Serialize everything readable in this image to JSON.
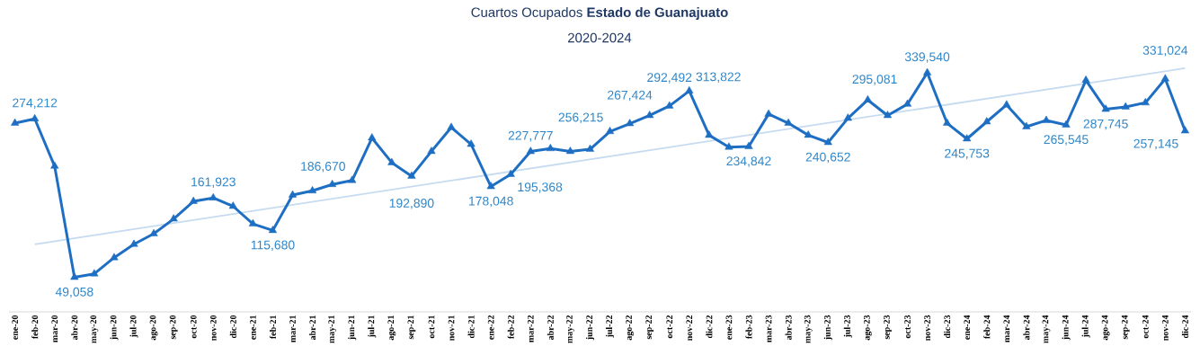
{
  "chart_data": {
    "type": "line",
    "title": "Cuartos Ocupados **Estado de Guanajuato**",
    "subtitle": "2020-2024",
    "categories": [
      "ene-20",
      "feb-20",
      "mar-20",
      "abr-20",
      "may-20",
      "jun-20",
      "jul-20",
      "ago-20",
      "sep-20",
      "oct-20",
      "nov-20",
      "dic-20",
      "ene-21",
      "feb-21",
      "mar-21",
      "abr-21",
      "may-21",
      "jun-21",
      "jul-21",
      "ago-21",
      "sep-21",
      "oct-21",
      "nov-21",
      "dic-21",
      "ene-22",
      "feb-22",
      "mar-22",
      "abr-22",
      "may-22",
      "jun-22",
      "jul-22",
      "ago-22",
      "sep-22",
      "oct-22",
      "nov-22",
      "dic-22",
      "ene-23",
      "feb-23",
      "mar-23",
      "abr-23",
      "may-23",
      "jun-23",
      "jul-23",
      "ago-23",
      "sep-23",
      "oct-23",
      "nov-23",
      "dic-23",
      "ene-24",
      "feb-24",
      "mar-24",
      "abr-24",
      "may-24",
      "jun-24",
      "jul-24",
      "ago-24",
      "sep-24",
      "oct-24",
      "nov-24",
      "dic-24"
    ],
    "series": [
      {
        "color": "#c6dbf0",
        "marker": "none",
        "values": [
          null,
          96000,
          null,
          null,
          null,
          null,
          null,
          null,
          null,
          null,
          null,
          null,
          null,
          null,
          null,
          null,
          null,
          null,
          null,
          null,
          null,
          null,
          null,
          null,
          null,
          null,
          null,
          null,
          null,
          null,
          null,
          null,
          null,
          null,
          null,
          null,
          null,
          null,
          null,
          null,
          null,
          null,
          null,
          null,
          null,
          null,
          null,
          null,
          null,
          null,
          null,
          null,
          null,
          null,
          null,
          null,
          null,
          null,
          null,
          346000
        ]
      },
      {
        "color": "#1e6fc3",
        "marker": "triangle",
        "values": [
          268000,
          274212,
          207000,
          49058,
          54000,
          77000,
          96000,
          111000,
          132000,
          157000,
          161923,
          150000,
          125000,
          115680,
          166000,
          172000,
          181000,
          186670,
          247000,
          212000,
          192890,
          228000,
          262000,
          238000,
          178048,
          195368,
          227777,
          232000,
          228000,
          231000,
          256215,
          267424,
          279000,
          292492,
          313822,
          251000,
          234000,
          234842,
          281000,
          268000,
          251000,
          240652,
          275000,
          301000,
          279000,
          295081,
          339540,
          268000,
          245753,
          270000,
          294000,
          263000,
          272000,
          265545,
          329000,
          287745,
          291000,
          297000,
          331024,
          257145
        ],
        "value_labels": [
          null,
          "274,212",
          null,
          "49,058",
          null,
          null,
          null,
          null,
          null,
          null,
          "161,923",
          null,
          null,
          "115,680",
          null,
          null,
          null,
          "186,670",
          null,
          null,
          "192,890",
          null,
          null,
          null,
          "178,048",
          "195,368",
          "227,777",
          null,
          null,
          null,
          "256,215",
          "267,424",
          null,
          "292,492",
          "313,822",
          null,
          null,
          "234,842",
          null,
          null,
          null,
          "240,652",
          null,
          null,
          null,
          "295,081",
          "339,540",
          null,
          "245,753",
          null,
          null,
          null,
          null,
          "265,545",
          null,
          "287,745",
          null,
          null,
          "331,024",
          "257,145"
        ]
      }
    ],
    "grid": false
  }
}
